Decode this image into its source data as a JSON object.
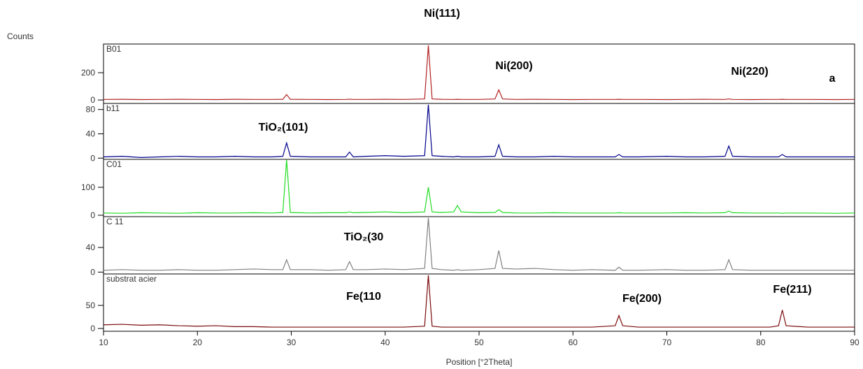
{
  "chart_data": [
    {
      "type": "line",
      "ylabel": "Counts",
      "annotations": [
        "Ni(111)",
        "Ni(200)",
        "Ni(220)",
        "a"
      ],
      "x": [
        10,
        12,
        14,
        16,
        18,
        20,
        22,
        24,
        26,
        28,
        29.1,
        29.5,
        29.9,
        32,
        34,
        35.8,
        36.2,
        36.6,
        38,
        40,
        42,
        44.2,
        44.6,
        45.0,
        46,
        47.3,
        47.7,
        48.1,
        50,
        51.7,
        52.1,
        52.5,
        54,
        56,
        58,
        60,
        62,
        64.5,
        64.9,
        65.3,
        67,
        70,
        72,
        74,
        76.2,
        76.6,
        77.0,
        79,
        81,
        81.9,
        82.3,
        82.7,
        85,
        88,
        90
      ],
      "series": [
        {
          "name": "B01",
          "color": "#b22222",
          "values": [
            4,
            5,
            3,
            4,
            5,
            4,
            3,
            5,
            4,
            4,
            5,
            40,
            5,
            4,
            3,
            4,
            6,
            4,
            4,
            5,
            4,
            8,
            400,
            8,
            5,
            4,
            5,
            4,
            4,
            8,
            75,
            8,
            4,
            5,
            4,
            3,
            4,
            4,
            5,
            4,
            4,
            3,
            4,
            5,
            4,
            8,
            4,
            3,
            4,
            4,
            5,
            4,
            4,
            3,
            4
          ]
        }
      ],
      "xlim": [
        10,
        90
      ],
      "ylim": [
        -25,
        410
      ],
      "yticks": [
        0,
        200
      ]
    },
    {
      "type": "line",
      "annotations": [
        "TiO₂(101)"
      ],
      "x": [
        10,
        12,
        14,
        16,
        18,
        20,
        22,
        24,
        26,
        28,
        29.1,
        29.5,
        29.9,
        32,
        34,
        35.8,
        36.2,
        36.6,
        38,
        40,
        42,
        44.2,
        44.6,
        45.0,
        46,
        47.3,
        47.7,
        48.1,
        50,
        51.7,
        52.1,
        52.5,
        54,
        56,
        58,
        60,
        62,
        64.5,
        64.9,
        65.3,
        67,
        70,
        72,
        74,
        76.2,
        76.6,
        77.0,
        79,
        81,
        81.9,
        82.3,
        82.7,
        85,
        88,
        90
      ],
      "series": [
        {
          "name": "b11",
          "color": "#00008b",
          "values": [
            2,
            3,
            1,
            2,
            3,
            2,
            2,
            3,
            2,
            2,
            3,
            25,
            3,
            2,
            2,
            2,
            10,
            2,
            3,
            4,
            3,
            4,
            88,
            4,
            3,
            2,
            3,
            2,
            2,
            3,
            22,
            3,
            2,
            2,
            3,
            2,
            2,
            2,
            6,
            2,
            2,
            3,
            2,
            2,
            3,
            20,
            3,
            2,
            2,
            2,
            6,
            2,
            2,
            2,
            2
          ]
        }
      ],
      "xlim": [
        10,
        90
      ],
      "ylim": [
        -2,
        90
      ],
      "yticks": [
        0,
        40,
        80
      ]
    },
    {
      "type": "line",
      "x": [
        10,
        12,
        14,
        16,
        18,
        20,
        22,
        24,
        26,
        28,
        29.1,
        29.5,
        29.9,
        32,
        34,
        35.8,
        36.2,
        36.6,
        38,
        40,
        42,
        44.2,
        44.6,
        45.0,
        46,
        47.3,
        47.7,
        48.1,
        50,
        51.7,
        52.1,
        52.5,
        54,
        56,
        58,
        60,
        62,
        64.5,
        64.9,
        65.3,
        67,
        70,
        72,
        74,
        76.2,
        76.6,
        77.0,
        79,
        81,
        81.9,
        82.3,
        82.7,
        85,
        88,
        90
      ],
      "series": [
        {
          "name": "C01",
          "color": "#22dd22",
          "values": [
            8,
            7,
            9,
            8,
            7,
            9,
            8,
            8,
            9,
            8,
            10,
            198,
            10,
            8,
            9,
            9,
            12,
            9,
            10,
            12,
            9,
            12,
            100,
            12,
            10,
            12,
            35,
            12,
            9,
            10,
            20,
            10,
            8,
            8,
            9,
            8,
            8,
            8,
            9,
            8,
            8,
            8,
            9,
            8,
            9,
            15,
            9,
            8,
            8,
            8,
            7,
            8,
            8,
            7,
            8
          ]
        }
      ],
      "xlim": [
        10,
        90
      ],
      "ylim": [
        -5,
        200
      ],
      "yticks": [
        0,
        100
      ]
    },
    {
      "type": "line",
      "annotations": [
        "TiO₂(30"
      ],
      "x": [
        10,
        12,
        14,
        16,
        18,
        20,
        22,
        24,
        26,
        28,
        29.1,
        29.5,
        29.9,
        32,
        34,
        35.8,
        36.2,
        36.6,
        38,
        40,
        42,
        44.2,
        44.6,
        45.0,
        46,
        47.3,
        47.7,
        48.1,
        50,
        51.7,
        52.1,
        52.5,
        54,
        56,
        58,
        60,
        62,
        64.5,
        64.9,
        65.3,
        67,
        70,
        72,
        74,
        76.2,
        76.6,
        77.0,
        79,
        81,
        81.9,
        82.3,
        82.7,
        85,
        88,
        90
      ],
      "series": [
        {
          "name": "C 11",
          "color": "#808080",
          "values": [
            3,
            4,
            3,
            3,
            4,
            3,
            3,
            4,
            5,
            4,
            4,
            20,
            4,
            4,
            3,
            4,
            17,
            4,
            4,
            5,
            4,
            6,
            88,
            6,
            4,
            3,
            4,
            3,
            4,
            6,
            35,
            6,
            5,
            6,
            4,
            3,
            4,
            3,
            8,
            3,
            3,
            4,
            3,
            3,
            4,
            20,
            4,
            3,
            3,
            3,
            3,
            3,
            3,
            3,
            3
          ]
        }
      ],
      "xlim": [
        10,
        90
      ],
      "ylim": [
        -3,
        90
      ],
      "yticks": [
        0,
        40
      ]
    },
    {
      "type": "line",
      "xlabel": "Position [°2Theta]",
      "annotations": [
        "Fe(110",
        "Fe(200)",
        "Fe(211)"
      ],
      "x": [
        10,
        12,
        14,
        16,
        18,
        20,
        22,
        24,
        26,
        28,
        29.1,
        29.5,
        29.9,
        32,
        34,
        35.8,
        36.2,
        36.6,
        38,
        40,
        42,
        44.2,
        44.6,
        45.0,
        46,
        47.3,
        47.7,
        48.1,
        50,
        51.7,
        52.1,
        52.5,
        54,
        56,
        58,
        60,
        62,
        64.5,
        64.9,
        65.3,
        67,
        70,
        72,
        74,
        76.2,
        76.6,
        77.0,
        79,
        81,
        81.9,
        82.3,
        82.7,
        85,
        88,
        90
      ],
      "series": [
        {
          "name": "substrat acier",
          "color": "#7a0a0a",
          "values": [
            8,
            9,
            7,
            8,
            6,
            5,
            6,
            4,
            4,
            3,
            3,
            3,
            3,
            3,
            3,
            3,
            3,
            3,
            3,
            3,
            3,
            5,
            115,
            5,
            3,
            3,
            3,
            3,
            3,
            3,
            3,
            3,
            3,
            3,
            3,
            3,
            3,
            6,
            28,
            6,
            3,
            3,
            3,
            3,
            3,
            3,
            3,
            3,
            3,
            6,
            40,
            6,
            3,
            3,
            3
          ]
        }
      ],
      "xlim": [
        10,
        90
      ],
      "ylim": [
        -6,
        118
      ],
      "yticks": [
        0,
        50
      ],
      "xticks": [
        10,
        20,
        30,
        40,
        50,
        60,
        70,
        80,
        90
      ]
    }
  ]
}
